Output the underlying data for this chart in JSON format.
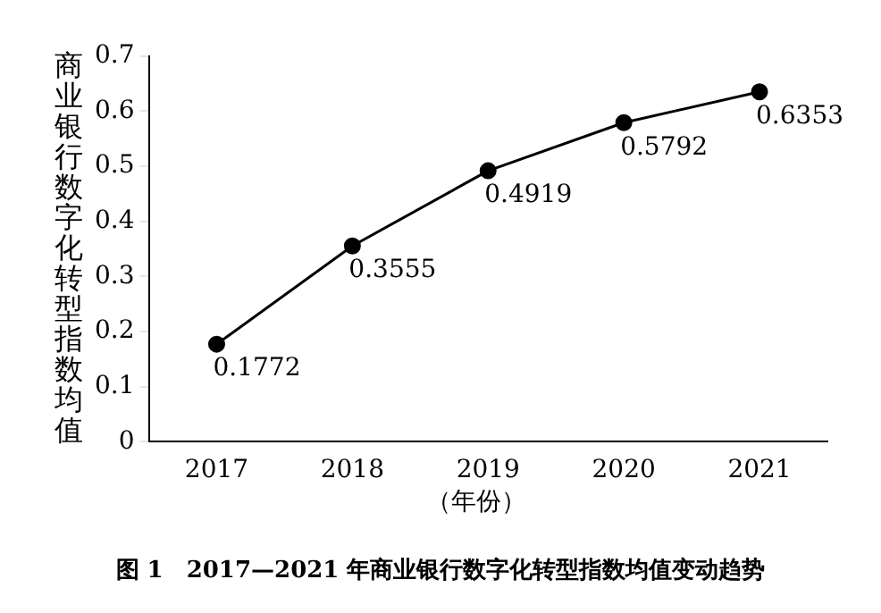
{
  "chart_data": {
    "type": "line",
    "title": "图 1　2017—2021 年商业银行数字化转型指数均值变动趋势",
    "xlabel": "（年份）",
    "ylabel": "商业银行数字化转型指数均值",
    "categories": [
      "2017",
      "2018",
      "2019",
      "2020",
      "2021"
    ],
    "series": [
      {
        "color": "#000000",
        "values": [
          0.1772,
          0.3555,
          0.4919,
          0.5792,
          0.6353
        ]
      }
    ],
    "ylim": [
      0,
      0.7
    ],
    "yticks": [
      0,
      0.1,
      0.2,
      0.3,
      0.4,
      0.5,
      0.6,
      0.7
    ],
    "grid": false,
    "legend": false,
    "marker": "circle",
    "line_style": "solid",
    "data_labels": true
  }
}
